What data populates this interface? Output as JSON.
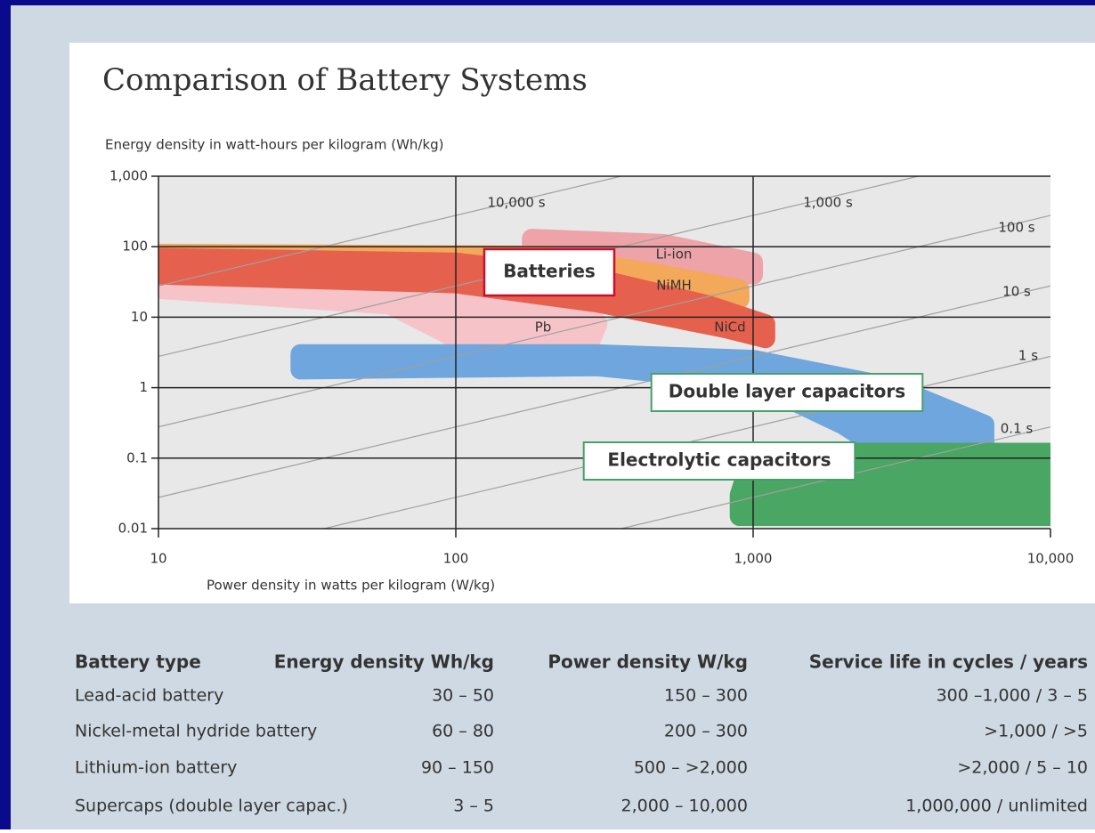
{
  "chart_data": {
    "type": "region",
    "title": "Comparison of Battery Systems",
    "y_label": "Energy density in watt-hours per kilogram (Wh/kg)",
    "x_label": "Power density in watts per kilogram (W/kg)",
    "log_x": true,
    "log_y": true,
    "grid": true,
    "xlim": [
      10,
      10000
    ],
    "ylim": [
      0.01,
      1000
    ],
    "xticks": [
      10,
      100,
      {
        "value": 1000,
        "label": "1,000"
      },
      {
        "value": 10000,
        "label": "10,000"
      }
    ],
    "yticks": [
      0.01,
      0.1,
      1,
      10,
      100,
      {
        "value": 1000,
        "label": "1,000"
      }
    ],
    "time_lines": [
      {
        "value": 10000,
        "label": "10,000 s"
      },
      {
        "value": 1000,
        "label": "1,000 s"
      },
      {
        "value": 100,
        "label": "100 s"
      },
      {
        "value": 10,
        "label": "10 s"
      },
      {
        "value": 1,
        "label": "1 s"
      },
      {
        "value": 0.1,
        "label": "0.1 s"
      }
    ],
    "annotation": "Batteries",
    "regions": [
      {
        "name": "Pb",
        "color": "#f6c3c8",
        "x": [
          10,
          100,
          250,
          300,
          280,
          150,
          100,
          60,
          10
        ],
        "y": [
          50,
          45,
          20,
          8,
          4,
          3,
          5,
          15,
          25
        ]
      },
      {
        "name": "Li-ion",
        "color": "#eea3a8",
        "x": [
          180,
          500,
          1000,
          1000,
          500,
          180
        ],
        "y": [
          130,
          110,
          60,
          40,
          50,
          60
        ]
      },
      {
        "name": "NiMH",
        "color": "#f3a85a",
        "x": [
          10,
          200,
          500,
          900,
          900,
          500,
          200,
          10
        ],
        "y": [
          80,
          75,
          40,
          25,
          18,
          25,
          40,
          55
        ]
      },
      {
        "name": "NiCd",
        "color": "#e6604e",
        "x": [
          10,
          100,
          300,
          700,
          1100,
          1100,
          800,
          300,
          100,
          10
        ],
        "y": [
          70,
          60,
          35,
          15,
          8,
          5,
          7,
          16,
          30,
          40
        ]
      },
      {
        "name": "Double layer capacitors",
        "color": "#6ea6dd",
        "x": [
          30,
          300,
          1000,
          3000,
          6000,
          6000,
          3000,
          2000,
          1000,
          300,
          30
        ],
        "y": [
          3,
          3,
          2.5,
          1,
          0.3,
          0.1,
          0.1,
          0.3,
          1.2,
          2,
          1.8
        ]
      },
      {
        "name": "Electrolytic capacitors",
        "color": "#49a663",
        "x": [
          900,
          1000,
          10000,
          10000,
          900
        ],
        "y": [
          0.03,
          0.12,
          0.12,
          0.015,
          0.015
        ]
      }
    ]
  },
  "table": {
    "header": [
      "Battery type",
      "Energy density Wh/kg",
      "Power density W/kg",
      "Service life in cycles / years"
    ],
    "rows": [
      [
        "Lead-acid battery",
        "30 – 50",
        "150 – 300",
        "300 –1,000 / 3 – 5"
      ],
      [
        "Nickel-metal hydride battery",
        "60 – 80",
        "200 – 300",
        ">1,000 / >5"
      ],
      [
        "Lithium-ion battery",
        "90 – 150",
        "500 – >2,000",
        ">2,000 / 5 – 10"
      ],
      [
        "Supercaps (double layer capac.)",
        "3 – 5",
        "2,000 – 10,000",
        "1,000,000 / unlimited"
      ]
    ]
  }
}
